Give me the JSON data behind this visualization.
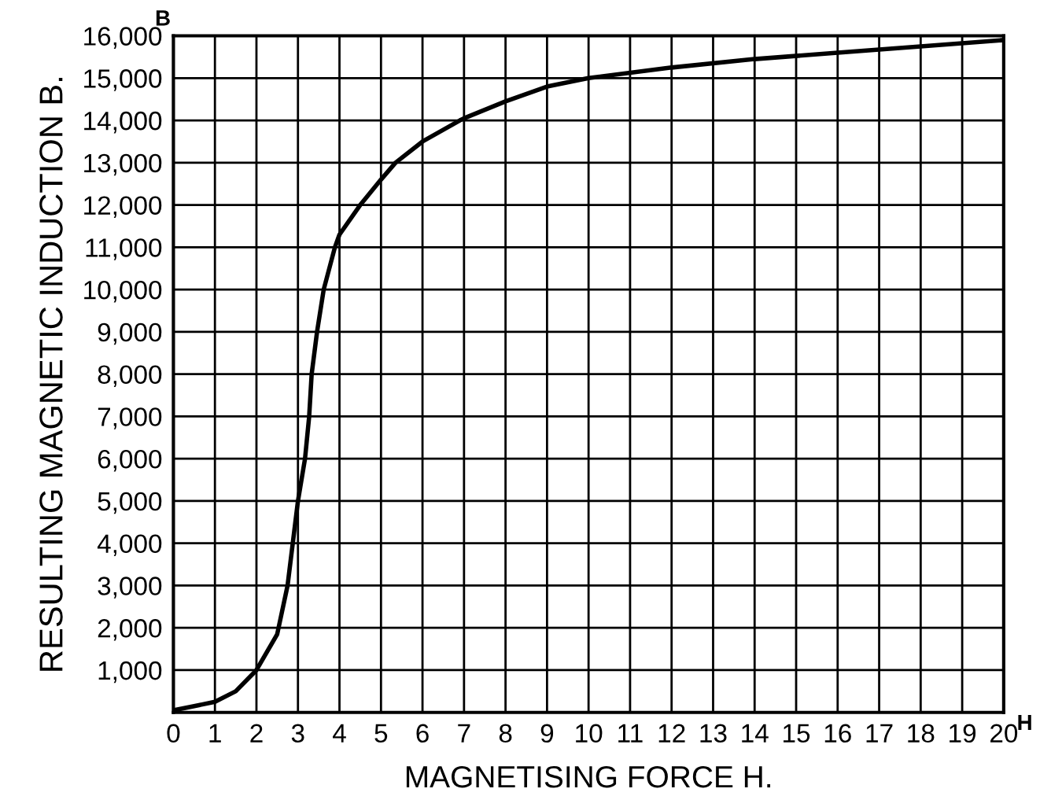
{
  "chart_data": {
    "type": "line",
    "xlabel": "MAGNETISING FORCE H.",
    "ylabel": "RESULTING MAGNETIC INDUCTION B.",
    "annotations": [
      "B",
      "H"
    ],
    "series": [
      {
        "color": "#000000",
        "x": [
          0,
          0.5,
          1,
          1.5,
          2,
          2.5,
          2.75,
          3,
          3.17,
          3.27,
          3.33,
          3.46,
          3.62,
          3.89,
          4,
          4.5,
          5,
          5.35,
          6,
          6.9,
          7,
          8,
          9,
          10,
          12,
          14,
          16,
          18,
          20
        ],
        "values": [
          50,
          150,
          250,
          500,
          1000,
          1850,
          3000,
          5000,
          6000,
          7000,
          8000,
          9000,
          10000,
          11000,
          11300,
          12000,
          12600,
          13000,
          13500,
          14000,
          14050,
          14450,
          14800,
          15000,
          15250,
          15450,
          15600,
          15750,
          15900
        ]
      }
    ],
    "xlim": [
      0,
      20
    ],
    "xticks": [
      0,
      1,
      2,
      3,
      4,
      5,
      6,
      7,
      8,
      9,
      10,
      11,
      12,
      13,
      14,
      15,
      16,
      17,
      18,
      19,
      20
    ],
    "ylim": [
      0,
      16000
    ],
    "yticks": [
      {
        "value": 0,
        "label": null
      },
      {
        "value": 1000,
        "label": "1,000"
      },
      {
        "value": 2000,
        "label": "2,000"
      },
      {
        "value": 3000,
        "label": "3,000"
      },
      {
        "value": 4000,
        "label": "4,000"
      },
      {
        "value": 5000,
        "label": "5,000"
      },
      {
        "value": 6000,
        "label": "6,000"
      },
      {
        "value": 7000,
        "label": "7,000"
      },
      {
        "value": 8000,
        "label": "8,000"
      },
      {
        "value": 9000,
        "label": "9,000"
      },
      {
        "value": 10000,
        "label": "10,000"
      },
      {
        "value": 11000,
        "label": "11,000"
      },
      {
        "value": 12000,
        "label": "12,000"
      },
      {
        "value": 13000,
        "label": "13,000"
      },
      {
        "value": 14000,
        "label": "14,000"
      },
      {
        "value": 15000,
        "label": "15,000"
      },
      {
        "value": 16000,
        "label": "16,000"
      }
    ],
    "grid": true,
    "marker": "none",
    "line_style": "solid"
  }
}
